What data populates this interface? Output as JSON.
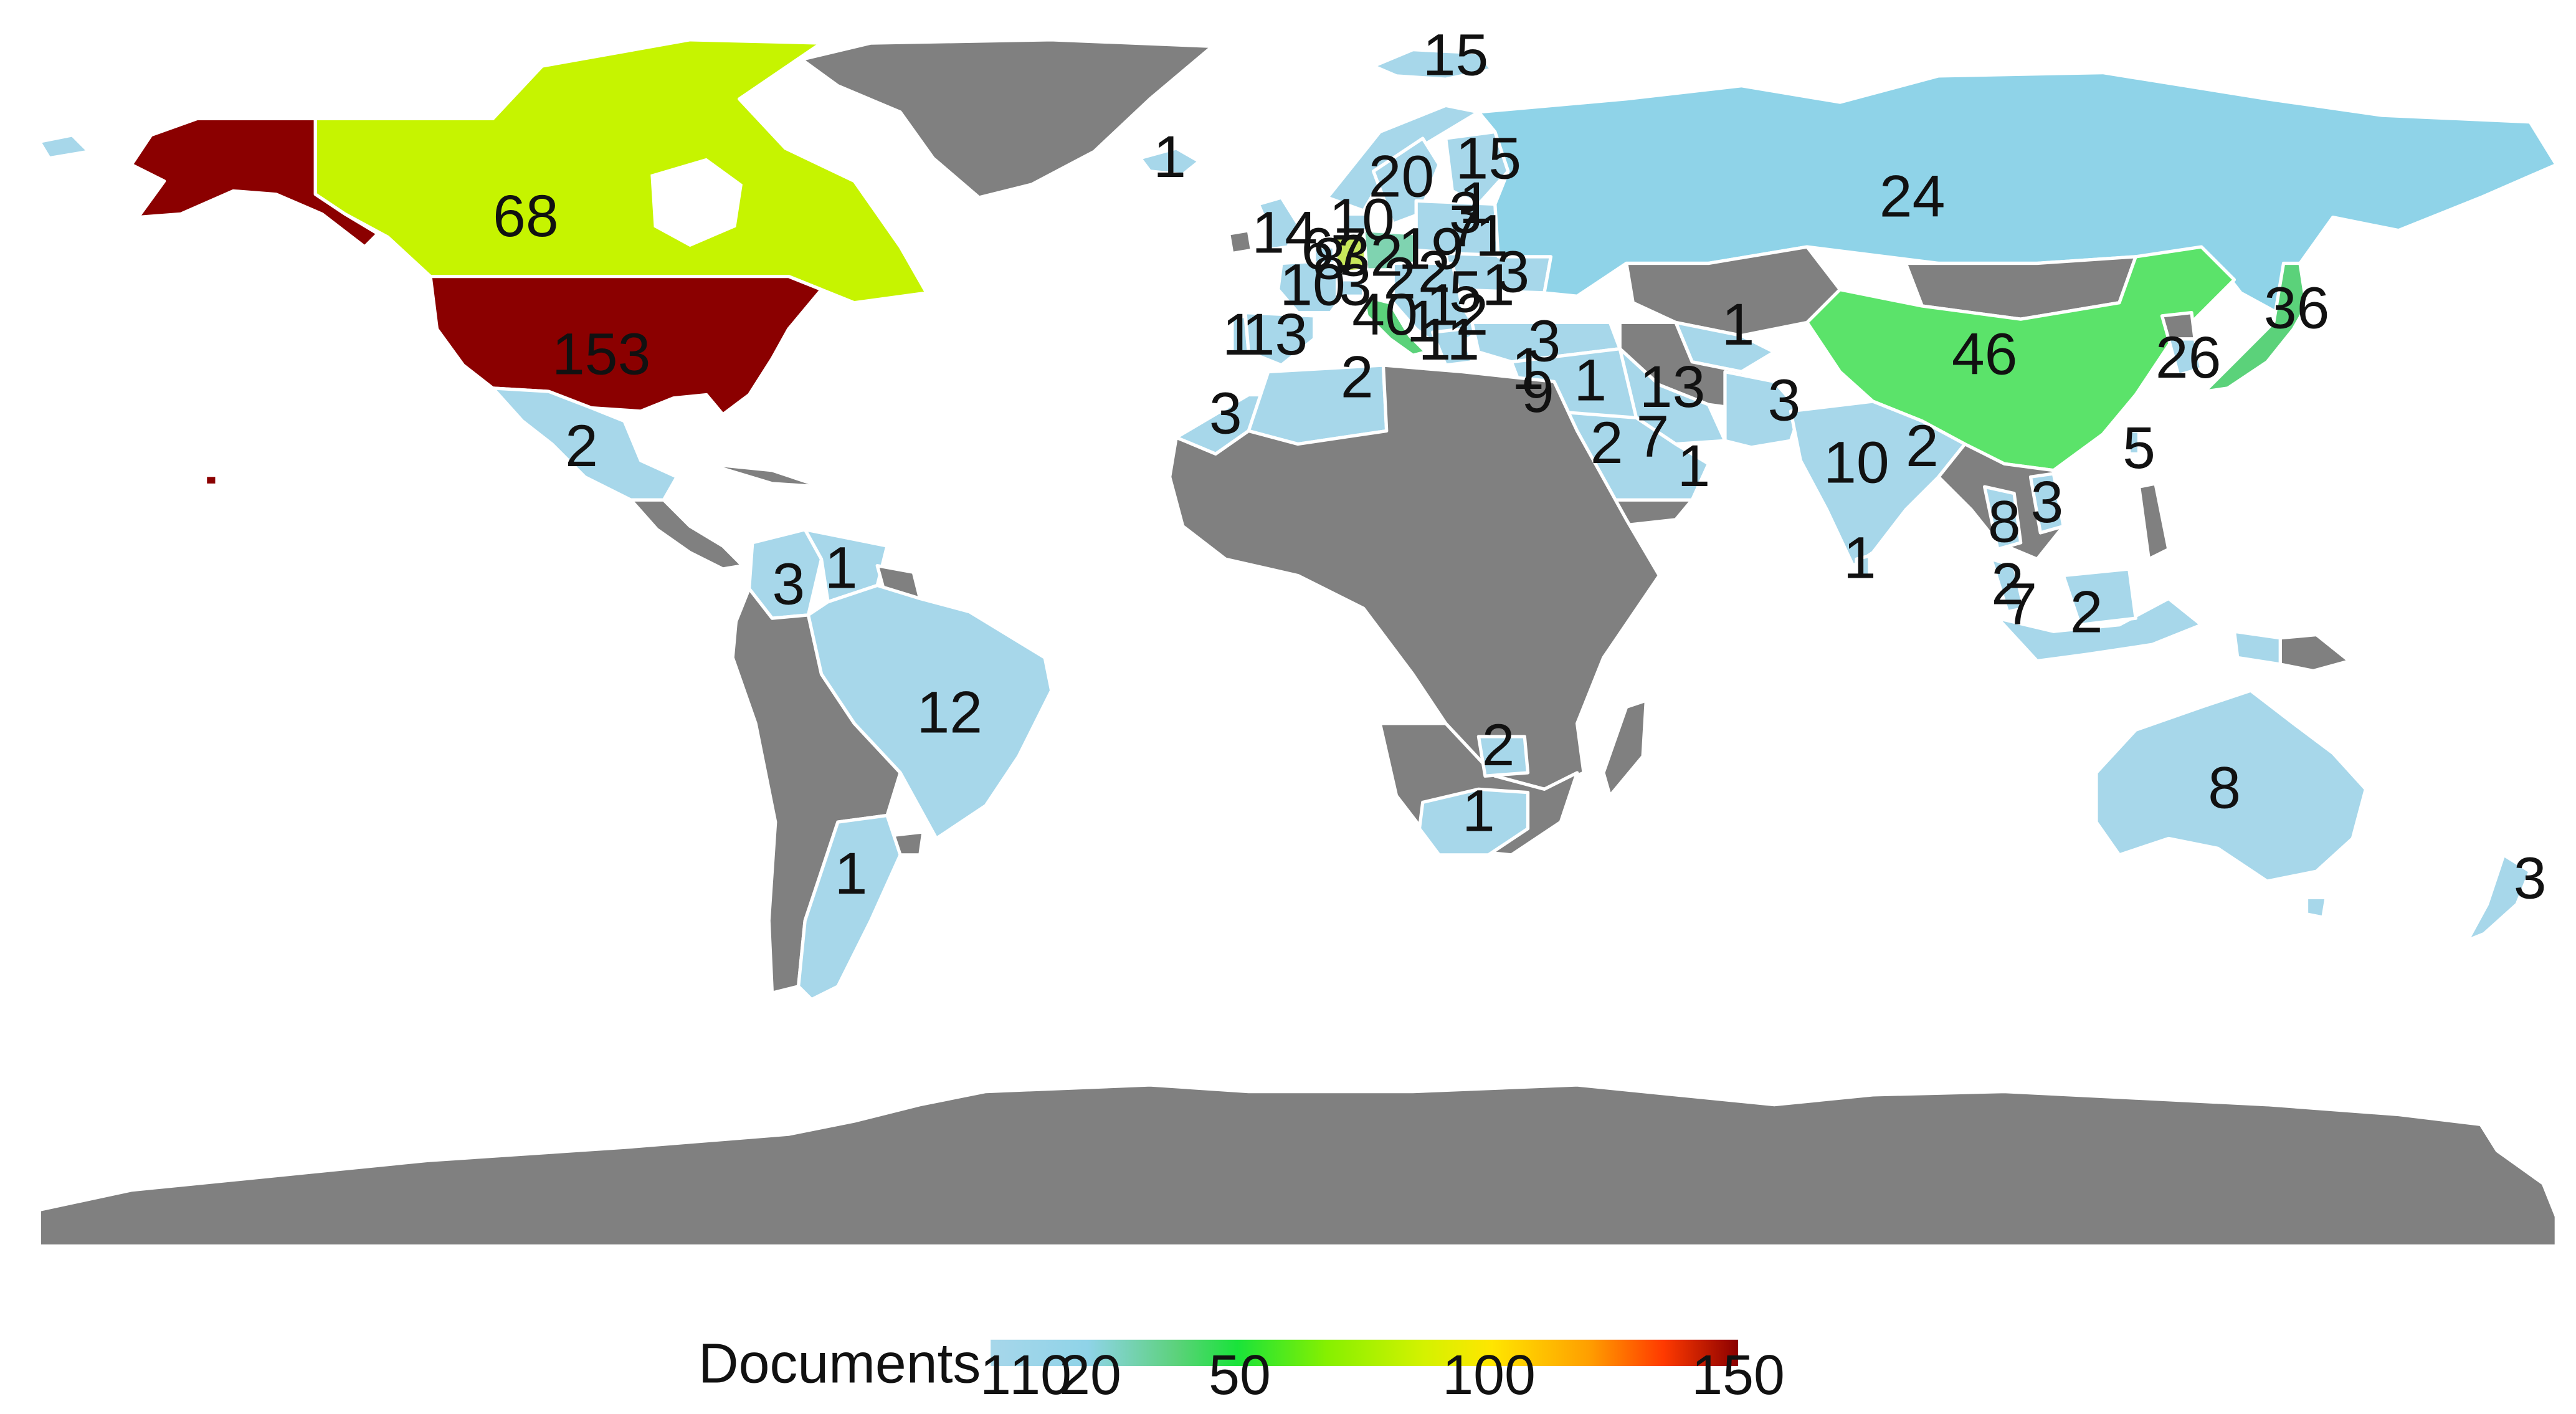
{
  "legend": {
    "title": "Documents",
    "ticks": [
      1,
      10,
      20,
      50,
      100,
      150
    ],
    "min": 1,
    "max": 150
  },
  "colors": {
    "no_data": "#808080",
    "low": "#a7d7ea",
    "scale": [
      "#a7d7ea",
      "#8fd3e8",
      "#5bd27a",
      "#19e33a",
      "#86f000",
      "#d4f200",
      "#ffe600",
      "#ff9f00",
      "#ff3a00",
      "#8b0000"
    ]
  },
  "map_data": {
    "type": "choropleth",
    "variable": "Documents",
    "countries": [
      {
        "name": "United States",
        "value": 153
      },
      {
        "name": "Canada",
        "value": 68
      },
      {
        "name": "Mexico",
        "value": 2
      },
      {
        "name": "Colombia",
        "value": 3
      },
      {
        "name": "Venezuela",
        "value": 1
      },
      {
        "name": "Brazil",
        "value": 12
      },
      {
        "name": "Argentina",
        "value": 1
      },
      {
        "name": "Svalbard",
        "value": 15
      },
      {
        "name": "Iceland",
        "value": 1
      },
      {
        "name": "United Kingdom",
        "value": 14
      },
      {
        "name": "Belgium",
        "value": 8
      },
      {
        "name": "Germany",
        "value": 67
      },
      {
        "name": "Poland",
        "value": 32
      },
      {
        "name": "France",
        "value": 10
      },
      {
        "name": "Portugal",
        "value": 1
      },
      {
        "name": "Spain",
        "value": 13
      },
      {
        "name": "Italy",
        "value": 40
      },
      {
        "name": "Switzerland",
        "value": 3
      },
      {
        "name": "Denmark",
        "value": 10
      },
      {
        "name": "Sweden",
        "value": 20
      },
      {
        "name": "Finland",
        "value": 15
      },
      {
        "name": "Latvia",
        "value": 3
      },
      {
        "name": "Lithuania",
        "value": 1
      },
      {
        "name": "Belarus",
        "value": 7
      },
      {
        "name": "Ukraine",
        "value": 1
      },
      {
        "name": "Czechia",
        "value": 19
      },
      {
        "name": "Austria",
        "value": 2
      },
      {
        "name": "Slovakia",
        "value": 2
      },
      {
        "name": "Hungary",
        "value": 1
      },
      {
        "name": "Romania",
        "value": 5
      },
      {
        "name": "Moldova",
        "value": 1
      },
      {
        "name": "Bulgaria",
        "value": 3
      },
      {
        "name": "Serbia",
        "value": 1
      },
      {
        "name": "North Macedonia",
        "value": 2
      },
      {
        "name": "Greece",
        "value": 11
      },
      {
        "name": "Turkey",
        "value": 3
      },
      {
        "name": "Morocco",
        "value": 3
      },
      {
        "name": "Algeria",
        "value": 2
      },
      {
        "name": "Lebanon",
        "value": 1
      },
      {
        "name": "Israel",
        "value": 9
      },
      {
        "name": "Jordan",
        "value": 1
      },
      {
        "name": "Iran",
        "value": 13
      },
      {
        "name": "Saudi Arabia",
        "value": 2
      },
      {
        "name": "United Arab Emirates",
        "value": 7
      },
      {
        "name": "Oman",
        "value": 1
      },
      {
        "name": "Pakistan",
        "value": 3
      },
      {
        "name": "Kazakhstan",
        "value": 1
      },
      {
        "name": "Russia",
        "value": 24
      },
      {
        "name": "India",
        "value": 10
      },
      {
        "name": "Nepal",
        "value": 2
      },
      {
        "name": "Sri Lanka",
        "value": 1
      },
      {
        "name": "China",
        "value": 46
      },
      {
        "name": "South Korea",
        "value": 26
      },
      {
        "name": "Japan",
        "value": 36
      },
      {
        "name": "Taiwan",
        "value": 5
      },
      {
        "name": "Vietnam",
        "value": 3
      },
      {
        "name": "Thailand",
        "value": 8
      },
      {
        "name": "Malaysia",
        "value": 2
      },
      {
        "name": "Singapore",
        "value": 7
      },
      {
        "name": "Indonesia",
        "value": 2
      },
      {
        "name": "Australia",
        "value": 8
      },
      {
        "name": "New Zealand",
        "value": 3
      },
      {
        "name": "Zimbabwe",
        "value": 2
      },
      {
        "name": "South Africa",
        "value": 1
      }
    ]
  }
}
